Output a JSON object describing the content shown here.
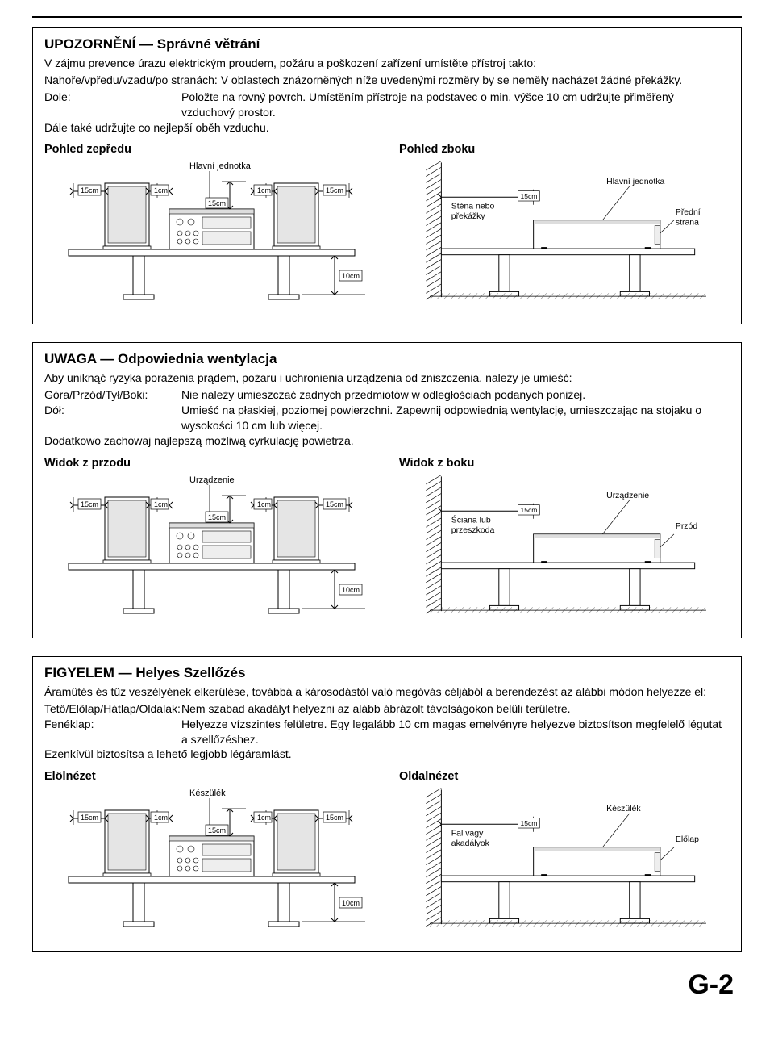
{
  "page_number": "G-2",
  "colors": {
    "stroke": "#000000",
    "fill_light": "#f2f2f2",
    "fill_mid": "#cccccc",
    "hatch": "#000000",
    "bg": "#ffffff"
  },
  "diagram_labels": {
    "d15cm": "15cm",
    "d1cm": "1cm",
    "d10cm": "10cm"
  },
  "sections": [
    {
      "title": "UPOZORNĚNÍ — Správné větrání",
      "intro": "V zájmu prevence úrazu elektrickým proudem, požáru a poškození zařízení  umístěte přístroj takto:",
      "rows": [
        {
          "label": "Nahoře/vpředu/vzadu/po stranách:",
          "value": "V oblastech znázorněných níže uvedenými rozměry by se neměly nacházet žádné překážky.",
          "inline": true
        },
        {
          "label": "Dole:",
          "value": "Položte na rovný povrch. Umístěním přístroje na podstavec o min. výšce 10 cm udržujte přiměřený vzduchový prostor."
        }
      ],
      "outro": "Dále také udržujte co nejlepší oběh vzduchu.",
      "front_view_title": "Pohled zepředu",
      "side_view_title": "Pohled zboku",
      "main_unit_label": "Hlavní jednotka",
      "wall_label": "Stěna  nebo překážky",
      "front_label": "Přední strana"
    },
    {
      "title": "UWAGA — Odpowiednia wentylacja",
      "intro": "Aby uniknąć ryzyka porażenia prądem, pożaru i uchronienia urządzenia od zniszczenia, należy je umieść:",
      "rows": [
        {
          "label": "Góra/Przód/Tył/Boki:",
          "value": "Nie należy umieszczać żadnych przedmiotów w odległościach podanych poniżej."
        },
        {
          "label": "Dół:",
          "value": "Umieść na płaskiej, poziomej powierzchni. Zapewnij odpowiednią wentylację, umieszczając na stojaku o wysokości 10 cm lub więcej."
        }
      ],
      "outro": "Dodatkowo zachowaj najlepszą możliwą cyrkulację powietrza.",
      "front_view_title": "Widok z przodu",
      "side_view_title": "Widok z boku",
      "main_unit_label": "Urządzenie",
      "wall_label": "Ściana lub przeszkoda",
      "front_label": "Przód"
    },
    {
      "title": "FIGYELEM — Helyes Szellőzés",
      "intro": "Áramütés és tűz veszélyének elkerülése, továbbá a károsodástól való megóvás céljából a berendezést az alábbi módon helyezze el:",
      "rows": [
        {
          "label": "Tető/Előlap/Hátlap/Oldalak:",
          "value": "Nem szabad akadályt helyezni az alább ábrázolt távolságokon belüli területre."
        },
        {
          "label": "Fenéklap:",
          "value": "Helyezze vízszintes felületre. Egy legalább 10 cm magas emelvényre helyezve biztosítson megfelelő légutat a szellőzéshez."
        }
      ],
      "outro": "Ezenkívül biztosítsa a lehető legjobb légáramlást.",
      "front_view_title": "Elölnézet",
      "side_view_title": "Oldalnézet",
      "main_unit_label": "Készülék",
      "wall_label": "Fal vagy akadályok",
      "front_label": "Előlap"
    }
  ]
}
